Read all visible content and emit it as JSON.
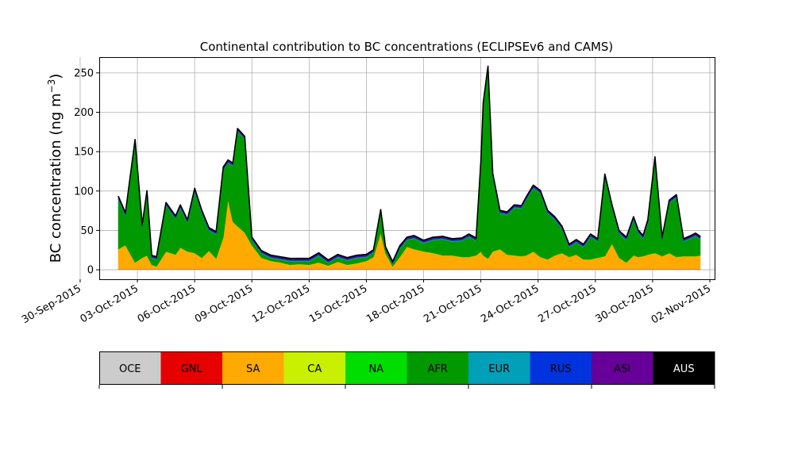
{
  "chart_data": {
    "type": "area",
    "title": "Continental contribution to BC concentrations (ECLIPSEv6 and CAMS)",
    "ylabel": "BC concentration (ng m⁻³)",
    "ylabel_main": "BC concentration (ng m",
    "ylabel_unit_exp": "−3",
    "ylabel_close": ")",
    "ylim": [
      -12,
      270
    ],
    "xlim": [
      "2015-10-01T00:00",
      "2015-11-02T06:00"
    ],
    "grid": true,
    "y_ticks": [
      0,
      50,
      100,
      150,
      200,
      250
    ],
    "x_ticks": [
      "2015-09-30",
      "2015-10-03",
      "2015-10-06",
      "2015-10-09",
      "2015-10-12",
      "2015-10-15",
      "2015-10-18",
      "2015-10-21",
      "2015-10-24",
      "2015-10-27",
      "2015-10-30",
      "2015-11-02"
    ],
    "x_tick_labels": [
      "30-Sep-2015",
      "03-Oct-2015",
      "06-Oct-2015",
      "09-Oct-2015",
      "12-Oct-2015",
      "15-Oct-2015",
      "18-Oct-2015",
      "21-Oct-2015",
      "24-Oct-2015",
      "27-Oct-2015",
      "30-Oct-2015",
      "02-Nov-2015"
    ],
    "x": [
      "2015-10-02T00:00",
      "2015-10-02T09:00",
      "2015-10-02T21:00",
      "2015-10-03T06:00",
      "2015-10-03T12:00",
      "2015-10-03T18:00",
      "2015-10-04T00:00",
      "2015-10-04T12:00",
      "2015-10-05T00:00",
      "2015-10-05T06:00",
      "2015-10-05T15:00",
      "2015-10-06T00:00",
      "2015-10-06T09:00",
      "2015-10-06T18:00",
      "2015-10-07T03:00",
      "2015-10-07T12:00",
      "2015-10-07T18:00",
      "2015-10-08T00:00",
      "2015-10-08T06:00",
      "2015-10-08T15:00",
      "2015-10-09T00:00",
      "2015-10-09T12:00",
      "2015-10-10T00:00",
      "2015-10-10T12:00",
      "2015-10-11T00:00",
      "2015-10-11T12:00",
      "2015-10-12T00:00",
      "2015-10-12T12:00",
      "2015-10-13T00:00",
      "2015-10-13T12:00",
      "2015-10-14T00:00",
      "2015-10-14T12:00",
      "2015-10-15T00:00",
      "2015-10-15T09:00",
      "2015-10-15T18:00",
      "2015-10-16T00:00",
      "2015-10-16T09:00",
      "2015-10-16T18:00",
      "2015-10-17T03:00",
      "2015-10-17T12:00",
      "2015-10-18T00:00",
      "2015-10-18T12:00",
      "2015-10-19T00:00",
      "2015-10-19T12:00",
      "2015-10-20T00:00",
      "2015-10-20T09:00",
      "2015-10-20T18:00",
      "2015-10-21T00:00",
      "2015-10-21T03:00",
      "2015-10-21T09:00",
      "2015-10-21T15:00",
      "2015-10-22T00:00",
      "2015-10-22T09:00",
      "2015-10-22T18:00",
      "2015-10-23T03:00",
      "2015-10-23T09:00",
      "2015-10-23T18:00",
      "2015-10-24T03:00",
      "2015-10-24T12:00",
      "2015-10-24T21:00",
      "2015-10-25T06:00",
      "2015-10-25T15:00",
      "2015-10-26T00:00",
      "2015-10-26T09:00",
      "2015-10-26T18:00",
      "2015-10-27T03:00",
      "2015-10-27T12:00",
      "2015-10-27T21:00",
      "2015-10-28T06:00",
      "2015-10-28T15:00",
      "2015-10-29T00:00",
      "2015-10-29T06:00",
      "2015-10-29T12:00",
      "2015-10-29T18:00",
      "2015-10-30T03:00",
      "2015-10-30T12:00",
      "2015-10-30T21:00",
      "2015-10-31T06:00",
      "2015-10-31T15:00",
      "2015-11-01T00:00",
      "2015-11-01T06:00",
      "2015-11-01T12:00"
    ],
    "series": [
      {
        "name": "OCE",
        "color": "#cccccc",
        "values": [
          0.5,
          0.5,
          0.5,
          0.5,
          0.5,
          0.5,
          0.5,
          0.5,
          0.5,
          0.5,
          0.5,
          0.5,
          0.5,
          0.5,
          0.5,
          0.5,
          0.5,
          0.5,
          0.5,
          0.5,
          0.5,
          0.5,
          0.5,
          0.5,
          0.5,
          0.5,
          0.5,
          0.5,
          0.5,
          0.5,
          0.5,
          0.5,
          0.5,
          0.5,
          0.5,
          0.5,
          0.5,
          0.5,
          0.5,
          0.5,
          0.5,
          0.5,
          0.5,
          0.5,
          0.5,
          0.5,
          0.5,
          0.5,
          0.5,
          0.5,
          0.5,
          0.5,
          0.5,
          0.5,
          0.5,
          0.5,
          0.5,
          0.5,
          0.5,
          0.5,
          0.5,
          0.5,
          0.5,
          0.5,
          0.5,
          0.5,
          0.5,
          0.5,
          0.5,
          0.5,
          0.5,
          0.5,
          0.5,
          0.5,
          0.5,
          0.5,
          0.5,
          0.5,
          0.5,
          0.5,
          0.5,
          0.5
        ]
      },
      {
        "name": "GNL",
        "color": "#e60000",
        "values": [
          0.3,
          0.3,
          0.3,
          0.3,
          0.3,
          0.3,
          0.3,
          0.3,
          0.3,
          0.3,
          0.3,
          0.3,
          0.3,
          0.3,
          0.3,
          0.3,
          0.3,
          0.3,
          0.3,
          0.3,
          0.3,
          0.3,
          0.3,
          0.3,
          0.3,
          0.3,
          0.3,
          0.3,
          0.3,
          0.3,
          0.3,
          0.3,
          0.3,
          0.3,
          0.3,
          0.3,
          0.3,
          0.3,
          0.3,
          0.3,
          0.3,
          0.3,
          0.3,
          0.3,
          0.3,
          0.3,
          0.3,
          0.3,
          0.3,
          0.3,
          0.3,
          0.3,
          0.3,
          0.3,
          0.3,
          0.3,
          0.3,
          0.3,
          0.3,
          0.3,
          0.3,
          0.3,
          0.3,
          0.3,
          0.3,
          0.3,
          0.3,
          0.3,
          0.3,
          0.3,
          0.3,
          0.3,
          0.3,
          0.3,
          0.3,
          0.3,
          0.3,
          0.3,
          0.3,
          0.3,
          0.3,
          0.3
        ]
      },
      {
        "name": "SA",
        "color": "#ffaa00",
        "values": [
          25,
          30,
          8,
          14,
          17,
          5,
          3,
          22,
          18,
          27,
          22,
          20,
          14,
          23,
          13,
          40,
          88,
          60,
          54,
          46,
          30,
          14,
          10,
          8,
          5,
          6,
          5,
          8,
          4,
          9,
          5,
          7,
          10,
          15,
          46,
          20,
          3,
          15,
          28,
          25,
          22,
          20,
          17,
          17,
          15,
          15,
          17,
          22,
          17,
          13,
          22,
          25,
          18,
          17,
          16,
          17,
          22,
          15,
          12,
          17,
          20,
          15,
          18,
          12,
          12,
          14,
          16,
          32,
          14,
          8,
          17,
          15,
          16,
          18,
          20,
          16,
          20,
          15,
          16,
          16,
          16,
          17
        ]
      },
      {
        "name": "CA",
        "color": "#c8f000",
        "values": [
          0.3,
          0.3,
          0.3,
          0.3,
          0.3,
          0.3,
          0.3,
          0.3,
          0.3,
          0.3,
          0.3,
          0.3,
          0.3,
          0.3,
          0.3,
          0.3,
          0.3,
          0.3,
          0.3,
          0.3,
          0.3,
          0.3,
          0.3,
          0.3,
          0.3,
          0.3,
          0.3,
          0.3,
          0.3,
          0.3,
          0.3,
          0.3,
          0.3,
          0.3,
          0.3,
          0.3,
          0.3,
          0.3,
          0.3,
          0.3,
          0.3,
          0.3,
          0.3,
          0.3,
          0.3,
          0.3,
          0.3,
          0.3,
          0.3,
          0.3,
          0.3,
          0.3,
          0.3,
          0.3,
          0.3,
          0.3,
          0.3,
          0.3,
          0.3,
          0.3,
          0.3,
          0.3,
          0.3,
          0.3,
          0.3,
          0.3,
          0.3,
          0.3,
          0.3,
          0.3,
          0.3,
          0.3,
          0.3,
          0.3,
          0.3,
          0.3,
          0.3,
          0.3,
          0.3,
          0.3,
          0.3,
          0.3
        ]
      },
      {
        "name": "NA",
        "color": "#00dd00",
        "values": [
          0.4,
          0.4,
          0.4,
          0.4,
          0.4,
          0.4,
          0.4,
          0.4,
          0.4,
          0.4,
          0.4,
          0.4,
          0.4,
          0.4,
          0.4,
          0.4,
          0.4,
          0.4,
          0.4,
          0.4,
          0.4,
          0.4,
          0.4,
          0.4,
          0.4,
          0.4,
          0.4,
          0.4,
          0.4,
          0.4,
          0.4,
          0.4,
          0.4,
          0.4,
          0.4,
          0.4,
          0.4,
          0.4,
          0.4,
          0.4,
          0.4,
          0.4,
          0.4,
          0.4,
          0.4,
          0.4,
          0.4,
          0.4,
          0.4,
          0.4,
          0.4,
          0.4,
          0.4,
          0.4,
          0.4,
          0.4,
          0.4,
          0.4,
          0.4,
          0.4,
          0.4,
          0.4,
          0.4,
          0.4,
          0.4,
          0.4,
          0.4,
          0.4,
          0.4,
          0.4,
          0.4,
          0.4,
          0.4,
          0.4,
          0.4,
          0.4,
          0.4,
          0.4,
          0.4,
          0.4,
          0.4,
          0.4
        ]
      },
      {
        "name": "AFR",
        "color": "#009900",
        "values": [
          63,
          37,
          152,
          38,
          78,
          8,
          8,
          58,
          45,
          50,
          36,
          78,
          56,
          25,
          30,
          85,
          46,
          70,
          120,
          118,
          6,
          5,
          3,
          3,
          4,
          3,
          4,
          8,
          3,
          5,
          5,
          6,
          4,
          5,
          25,
          4,
          2,
          10,
          8,
          13,
          10,
          16,
          20,
          17,
          20,
          25,
          18,
          110,
          190,
          240,
          95,
          45,
          50,
          60,
          60,
          70,
          80,
          80,
          58,
          45,
          30,
          12,
          15,
          15,
          28,
          20,
          100,
          45,
          30,
          28,
          45,
          30,
          22,
          40,
          118,
          20,
          63,
          75,
          18,
          22,
          25,
          20
        ]
      },
      {
        "name": "EUR",
        "color": "#00a0b8",
        "values": [
          1.2,
          1.2,
          1.2,
          1.2,
          1.2,
          1.2,
          1.2,
          1.2,
          1.2,
          1.2,
          1.2,
          1.2,
          1.2,
          1.2,
          1.2,
          1.2,
          1.2,
          1.2,
          1.2,
          1.2,
          1.2,
          1.2,
          1.2,
          1.2,
          1.2,
          1.2,
          1.2,
          1.2,
          1.2,
          1.2,
          1.2,
          1.2,
          1.2,
          1.2,
          1.2,
          1.2,
          1.2,
          1.2,
          1.2,
          1.2,
          1.2,
          1.2,
          1.2,
          1.2,
          1.2,
          1.2,
          1.2,
          1.2,
          1.2,
          1.2,
          1.2,
          1.2,
          1.2,
          1.2,
          1.2,
          1.2,
          1.2,
          1.2,
          1.2,
          1.2,
          1.2,
          1.2,
          1.2,
          1.2,
          1.2,
          1.2,
          1.2,
          1.2,
          1.2,
          1.2,
          1.2,
          1.2,
          1.2,
          1.2,
          1.2,
          1.2,
          1.2,
          1.2,
          1.2,
          1.2,
          1.2,
          1.2
        ]
      },
      {
        "name": "RUS",
        "color": "#0033dd",
        "values": [
          0.5,
          0.5,
          0.5,
          0.5,
          0.5,
          0.5,
          0.5,
          0.5,
          0.5,
          0.5,
          0.5,
          0.5,
          0.5,
          0.5,
          0.5,
          0.5,
          0.5,
          0.5,
          0.5,
          0.5,
          0.5,
          0.5,
          0.5,
          0.5,
          0.5,
          0.5,
          0.5,
          0.5,
          0.5,
          0.5,
          0.5,
          0.5,
          0.5,
          0.5,
          0.5,
          0.5,
          0.5,
          0.5,
          0.5,
          0.5,
          0.5,
          0.5,
          0.5,
          0.5,
          0.5,
          0.5,
          0.5,
          0.5,
          0.5,
          0.5,
          0.5,
          0.5,
          0.5,
          0.5,
          0.5,
          0.5,
          0.5,
          0.5,
          0.5,
          0.5,
          0.5,
          0.5,
          0.5,
          0.5,
          0.5,
          0.5,
          0.5,
          0.5,
          0.5,
          0.5,
          0.5,
          0.5,
          0.5,
          0.5,
          0.5,
          0.5,
          0.5,
          0.5,
          0.5,
          0.5,
          0.5,
          0.5
        ]
      },
      {
        "name": "ASI",
        "color": "#660099",
        "values": [
          1.5,
          1.5,
          1.5,
          1.5,
          1.5,
          1.5,
          1.5,
          1.5,
          1.5,
          1.5,
          1.5,
          1.5,
          1.5,
          1.5,
          1.5,
          1.5,
          1.5,
          1.5,
          1.5,
          1.5,
          1.5,
          1.5,
          1.5,
          1.5,
          1.5,
          1.5,
          1.5,
          1.5,
          1.5,
          1.5,
          1.5,
          1.5,
          1.5,
          1.5,
          1.5,
          1.5,
          1.5,
          1.5,
          1.5,
          1.5,
          1.5,
          1.5,
          1.5,
          1.5,
          1.5,
          1.5,
          1.5,
          1.5,
          1.5,
          1.5,
          1.5,
          1.5,
          1.5,
          1.5,
          1.5,
          1.5,
          1.5,
          1.5,
          1.5,
          1.5,
          1.5,
          1.5,
          1.5,
          1.5,
          1.5,
          1.5,
          1.5,
          1.5,
          1.5,
          1.5,
          1.5,
          1.5,
          1.5,
          1.5,
          1.5,
          1.5,
          1.5,
          1.5,
          1.5,
          1.5,
          1.5,
          1.5
        ]
      },
      {
        "name": "AUS",
        "color": "#000000",
        "values": [
          0.8,
          0.8,
          0.8,
          0.8,
          0.8,
          0.8,
          0.8,
          0.8,
          0.8,
          0.8,
          0.8,
          0.8,
          0.8,
          0.8,
          0.8,
          0.8,
          0.8,
          0.8,
          0.8,
          0.8,
          0.8,
          0.8,
          0.8,
          0.8,
          0.8,
          0.8,
          0.8,
          0.8,
          0.8,
          0.8,
          0.8,
          0.8,
          0.8,
          0.8,
          0.8,
          0.8,
          0.8,
          0.8,
          0.8,
          0.8,
          0.8,
          0.8,
          0.8,
          0.8,
          0.8,
          0.8,
          0.8,
          0.8,
          0.8,
          0.8,
          0.8,
          0.8,
          0.8,
          0.8,
          0.8,
          0.8,
          0.8,
          0.8,
          0.8,
          0.8,
          0.8,
          0.8,
          0.8,
          0.8,
          0.8,
          0.8,
          0.8,
          0.8,
          0.8,
          0.8,
          0.8,
          0.8,
          0.8,
          0.8,
          0.8,
          0.8,
          0.8,
          0.8,
          0.8,
          0.8,
          0.8,
          0.8
        ]
      }
    ],
    "legend_labels": [
      "OCE",
      "GNL",
      "SA",
      "CA",
      "NA",
      "AFR",
      "EUR",
      "RUS",
      "ASI",
      "AUS"
    ],
    "legend_text_colors": [
      "#000000",
      "#000000",
      "#000000",
      "#000000",
      "#000000",
      "#000000",
      "#000000",
      "#000000",
      "#000000",
      "#ffffff"
    ],
    "legend_placement": "bottom"
  }
}
